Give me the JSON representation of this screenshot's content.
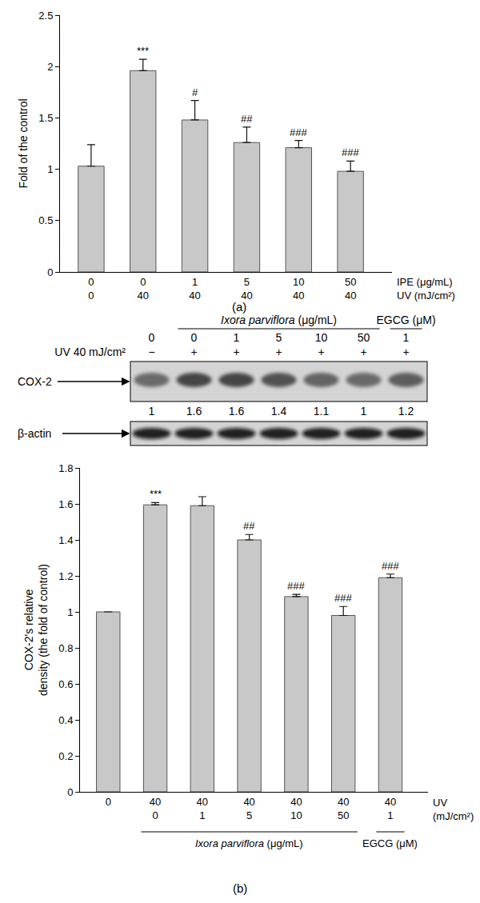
{
  "chart_data": [
    {
      "type": "bar",
      "y_label": "Fold of the control",
      "categories": [
        [
          "0",
          "0"
        ],
        [
          "0",
          "40"
        ],
        [
          "1",
          "40"
        ],
        [
          "5",
          "40"
        ],
        [
          "10",
          "40"
        ],
        [
          "50",
          "40"
        ]
      ],
      "category_rows": [
        "IPE (μg/mL)",
        "UV (mJ/cm²)"
      ],
      "values": [
        1.03,
        1.96,
        1.48,
        1.26,
        1.21,
        0.98
      ],
      "errors": [
        0.21,
        0.11,
        0.19,
        0.15,
        0.07,
        0.1
      ],
      "significance": [
        null,
        "***",
        "#",
        "##",
        "###",
        "###"
      ],
      "color": "#c8c8c8",
      "ylim": [
        0,
        2.5
      ],
      "yticks": [
        0,
        0.5,
        1,
        1.5,
        2,
        2.5
      ],
      "grid": false,
      "annotations": [
        "(a)"
      ]
    },
    {
      "type": "bar",
      "y_label": "COX-2's relative\ndensity (the fold of control)",
      "categories": [
        [
          "0",
          null
        ],
        [
          "40",
          "0"
        ],
        [
          "40",
          "1"
        ],
        [
          "40",
          "5"
        ],
        [
          "40",
          "10"
        ],
        [
          "40",
          "50"
        ],
        [
          "40",
          "1"
        ]
      ],
      "category_rows": [
        "UV\n(mJ/cm²)",
        null
      ],
      "category_groups": [
        {
          "label": "Ixora parviflora",
          "unit": "(μg/mL)",
          "span": [
            1,
            5
          ]
        },
        {
          "label": "EGCG",
          "unit": "(μM)",
          "span": [
            6,
            6
          ]
        }
      ],
      "values": [
        1.0,
        1.595,
        1.59,
        1.4,
        1.085,
        0.98,
        1.19
      ],
      "errors": [
        0,
        0.012,
        0.05,
        0.03,
        0.012,
        0.05,
        0.02
      ],
      "significance": [
        null,
        "***",
        null,
        "##",
        "###",
        "###",
        "###"
      ],
      "color": "#c8c8c8",
      "ylim": [
        0,
        1.8
      ],
      "yticks": [
        0,
        0.2,
        0.4,
        0.6,
        0.8,
        1,
        1.2,
        1.4,
        1.6,
        1.8
      ],
      "grid": false,
      "annotations": [
        "(b)"
      ]
    }
  ],
  "blot": {
    "groups": [
      {
        "label": "Ixora parviflora",
        "unit": "(μg/mL)",
        "span": [
          1,
          5
        ]
      },
      {
        "label": "EGCG",
        "unit": "(μM)",
        "span": [
          6,
          6
        ]
      }
    ],
    "doses": [
      "0",
      "0",
      "1",
      "5",
      "10",
      "50",
      "1"
    ],
    "uv_label": "UV 40 mJ/cm²",
    "uv": [
      "−",
      "+",
      "+",
      "+",
      "+",
      "+",
      "+"
    ],
    "bands": [
      {
        "label": "COX-2",
        "densities": [
          1,
          1.6,
          1.6,
          1.4,
          1.1,
          1,
          1.2
        ]
      },
      {
        "label": "β-actin"
      }
    ]
  }
}
